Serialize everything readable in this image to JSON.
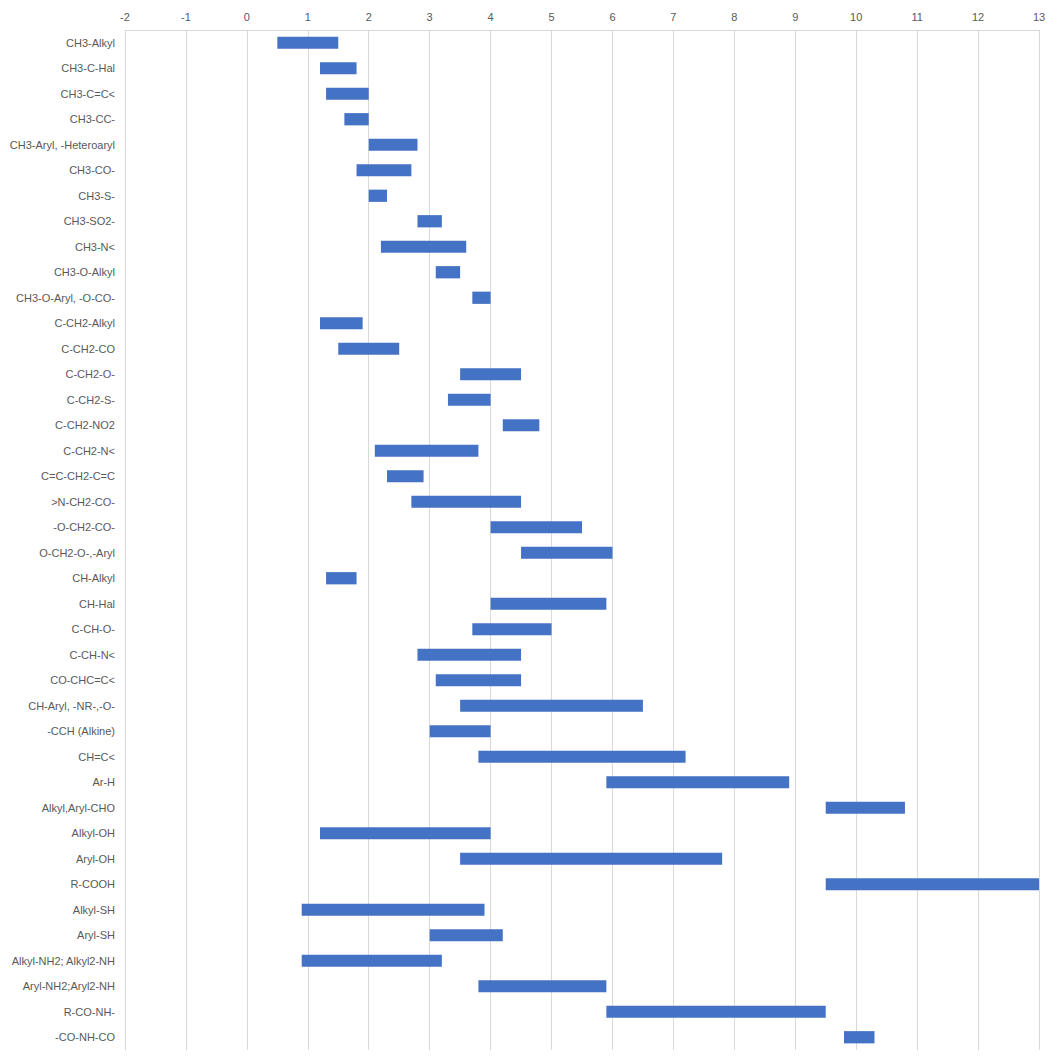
{
  "chart_data": {
    "type": "bar",
    "orientation": "horizontal",
    "color": "#4472c4",
    "grid": true,
    "categories": [
      "CH3-Alkyl",
      "CH3-C-Hal",
      "CH3-C=C<",
      "CH3-CC-",
      "CH3-Aryl, -Heteroaryl",
      "CH3-CO-",
      "CH3-S-",
      "CH3-SO2-",
      "CH3-N<",
      "CH3-O-Alkyl",
      "CH3-O-Aryl, -O-CO-",
      "C-CH2-Alkyl",
      "C-CH2-CO",
      "C-CH2-O-",
      "C-CH2-S-",
      "C-CH2-NO2",
      "C-CH2-N<",
      "C=C-CH2-C=C",
      ">N-CH2-CO-",
      "-O-CH2-CO-",
      "O-CH2-O-,-Aryl",
      "CH-Alkyl",
      "CH-Hal",
      "C-CH-O-",
      "C-CH-N<",
      "CO-CHC=C<",
      "CH-Aryl, -NR-,-O-",
      "-CCH (Alkine)",
      "CH=C<",
      "Ar-H",
      "Alkyl,Aryl-CHO",
      "Alkyl-OH",
      "Aryl-OH",
      "R-COOH",
      "Alkyl-SH",
      "Aryl-SH",
      "Alkyl-NH2; Alkyl2-NH",
      "Aryl-NH2;Aryl2-NH",
      "R-CO-NH-",
      "-CO-NH-CO"
    ],
    "values": [
      [
        0.5,
        1.5
      ],
      [
        1.2,
        1.8
      ],
      [
        1.3,
        2.0
      ],
      [
        1.6,
        2.0
      ],
      [
        2.0,
        2.8
      ],
      [
        1.8,
        2.7
      ],
      [
        2.0,
        2.3
      ],
      [
        2.8,
        3.2
      ],
      [
        2.2,
        3.6
      ],
      [
        3.1,
        3.5
      ],
      [
        3.7,
        4.0
      ],
      [
        1.2,
        1.9
      ],
      [
        1.5,
        2.5
      ],
      [
        3.5,
        4.5
      ],
      [
        3.3,
        4.0
      ],
      [
        4.2,
        4.8
      ],
      [
        2.1,
        3.8
      ],
      [
        2.3,
        2.9
      ],
      [
        2.7,
        4.5
      ],
      [
        4.0,
        5.5
      ],
      [
        4.5,
        6.0
      ],
      [
        1.3,
        1.8
      ],
      [
        4.0,
        5.9
      ],
      [
        3.7,
        5.0
      ],
      [
        2.8,
        4.5
      ],
      [
        3.1,
        4.5
      ],
      [
        3.5,
        6.5
      ],
      [
        3.0,
        4.0
      ],
      [
        3.8,
        7.2
      ],
      [
        5.9,
        8.9
      ],
      [
        9.5,
        10.8
      ],
      [
        1.2,
        4.0
      ],
      [
        3.5,
        7.8
      ],
      [
        9.5,
        13.0
      ],
      [
        0.9,
        3.9
      ],
      [
        3.0,
        4.2
      ],
      [
        0.9,
        3.2
      ],
      [
        3.8,
        5.9
      ],
      [
        5.9,
        9.5
      ],
      [
        9.8,
        10.3
      ]
    ],
    "xlim": [
      -2,
      13
    ],
    "xticks": [
      -2,
      -1,
      0,
      1,
      2,
      3,
      4,
      5,
      6,
      7,
      8,
      9,
      10,
      11,
      12,
      13
    ]
  }
}
